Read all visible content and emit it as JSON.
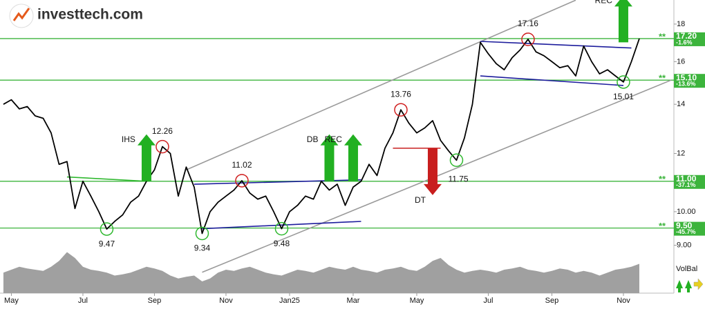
{
  "logo": "investtech.com",
  "chart_data": {
    "type": "line",
    "log_scale": true,
    "xlim": [
      -0.43,
      84.35
    ],
    "xticks": [
      {
        "value": 1,
        "label": "May"
      },
      {
        "value": 10,
        "label": "Jul"
      },
      {
        "value": 19,
        "label": "Sep"
      },
      {
        "value": 28,
        "label": "Nov"
      },
      {
        "value": 36,
        "label": "Jan25"
      },
      {
        "value": 44,
        "label": "Mar"
      },
      {
        "value": 52,
        "label": "May"
      },
      {
        "value": 61,
        "label": "Jul"
      },
      {
        "value": 69,
        "label": "Sep"
      },
      {
        "value": 78,
        "label": "Nov"
      }
    ],
    "ylim": [
      8.82,
      19.41
    ],
    "yticks": [
      {
        "value": 9,
        "label": "9.00"
      },
      {
        "value": 10,
        "label": "10.00"
      },
      12,
      14,
      16,
      18
    ],
    "series": [
      {
        "color": "#000000",
        "values": [
          14.0,
          14.2,
          13.8,
          13.9,
          13.5,
          13.4,
          12.8,
          11.6,
          11.7,
          10.1,
          11.0,
          10.5,
          10.0,
          9.47,
          9.7,
          9.9,
          10.3,
          10.5,
          11.0,
          11.4,
          12.26,
          12.0,
          10.5,
          11.5,
          10.8,
          9.34,
          10.0,
          10.3,
          10.5,
          10.7,
          11.02,
          10.6,
          10.4,
          10.5,
          10.0,
          9.48,
          10.0,
          10.2,
          10.5,
          10.4,
          11.0,
          10.7,
          10.9,
          10.2,
          10.8,
          11.0,
          11.6,
          11.2,
          12.2,
          12.8,
          13.76,
          13.2,
          12.8,
          13.0,
          13.3,
          12.5,
          12.1,
          11.75,
          12.6,
          14.0,
          17.0,
          16.4,
          15.9,
          15.6,
          16.2,
          16.6,
          17.16,
          16.5,
          16.3,
          16.0,
          15.7,
          15.8,
          15.3,
          16.8,
          16.0,
          15.4,
          15.6,
          15.3,
          15.01,
          16.0,
          17.2
        ]
      }
    ],
    "level_marker": "**",
    "level_color": "#3cb43c",
    "levels": [
      {
        "value": 17.2,
        "label": "17.20",
        "change": {
          "value": -1.6,
          "label": "-1.6%"
        }
      },
      {
        "value": 15.1,
        "label": "15.10",
        "change": {
          "value": -13.6,
          "label": "-13.6%"
        }
      },
      {
        "value": 11.0,
        "label": "11.00",
        "change": {
          "value": -37.1,
          "label": "-37.1%"
        }
      },
      {
        "value": 9.5,
        "label": "9.50",
        "change": {
          "value": -45.7,
          "label": "-45.7%"
        }
      }
    ],
    "trendlines": [
      {
        "x": [
          23,
          72
        ],
        "y": [
          11.4,
          19.4
        ],
        "color": "#9a9a9a"
      },
      {
        "x": [
          25,
          84
        ],
        "y": [
          8.27,
          15.1
        ],
        "color": "#9a9a9a"
      },
      {
        "x": [
          8,
          18
        ],
        "y": [
          11.15,
          11.0
        ],
        "color": "#2eb82e"
      },
      {
        "x": [
          24,
          45
        ],
        "y": [
          10.9,
          11.05
        ],
        "color": "#1c1c9c"
      },
      {
        "x": [
          25,
          45
        ],
        "y": [
          9.48,
          9.7
        ],
        "color": "#1c1c9c"
      },
      {
        "x": [
          60,
          79
        ],
        "y": [
          17.05,
          16.7
        ],
        "color": "#1c1c9c"
      },
      {
        "x": [
          60,
          78
        ],
        "y": [
          15.3,
          14.85
        ],
        "color": "#1c1c9c"
      },
      {
        "x": [
          49,
          55
        ],
        "y": [
          12.2,
          12.2
        ],
        "color": "#c81e1e"
      }
    ],
    "annotations": [
      {
        "x": 13,
        "value": 9.47,
        "color": "#2eb82e",
        "position": "below"
      },
      {
        "x": 20,
        "value": 12.26,
        "color": "#d02020",
        "position": "above"
      },
      {
        "x": 25,
        "value": 9.34,
        "color": "#2eb82e",
        "position": "below"
      },
      {
        "x": 30,
        "value": 11.02,
        "color": "#d02020",
        "position": "above"
      },
      {
        "x": 35,
        "value": 9.48,
        "color": "#2eb82e",
        "position": "below"
      },
      {
        "x": 50,
        "value": 13.76,
        "color": "#d02020",
        "position": "above"
      },
      {
        "x": 57,
        "value": 11.75,
        "color": "#2eb82e",
        "position": "right"
      },
      {
        "x": 66,
        "value": 17.16,
        "color": "#d02020",
        "position": "above"
      },
      {
        "x": 78,
        "value": 15.01,
        "color": "#2eb82e",
        "position": "below"
      }
    ],
    "signals": [
      {
        "x": 18,
        "price": 11.0,
        "label": "IHS",
        "direction": "up",
        "color": "#22b022"
      },
      {
        "x": 41,
        "price": 11.0,
        "label": "DB",
        "direction": "up",
        "color": "#22b022"
      },
      {
        "x": 44,
        "price": 11.0,
        "label": "REC",
        "direction": "up",
        "color": "#22b022"
      },
      {
        "x": 54,
        "price": 12.2,
        "label": "DT",
        "direction": "down",
        "color": "#c81e1e"
      },
      {
        "x": 78,
        "price": 17.0,
        "label": "REC",
        "direction": "up",
        "color": "#22b022"
      }
    ],
    "volume": {
      "label": "VolBal",
      "color": "#a0a0a0",
      "ylim": [
        0,
        100
      ],
      "values": [
        35,
        40,
        45,
        42,
        40,
        38,
        45,
        55,
        70,
        60,
        45,
        40,
        38,
        35,
        30,
        32,
        35,
        40,
        45,
        42,
        38,
        30,
        25,
        28,
        30,
        20,
        25,
        35,
        40,
        38,
        42,
        45,
        40,
        35,
        32,
        30,
        35,
        40,
        38,
        35,
        40,
        45,
        42,
        40,
        45,
        40,
        38,
        35,
        40,
        42,
        45,
        40,
        38,
        45,
        55,
        60,
        48,
        40,
        35,
        38,
        40,
        38,
        35,
        40,
        42,
        45,
        40,
        38,
        35,
        38,
        42,
        40,
        35,
        38,
        35,
        30,
        35,
        40,
        42,
        45,
        50
      ]
    }
  }
}
